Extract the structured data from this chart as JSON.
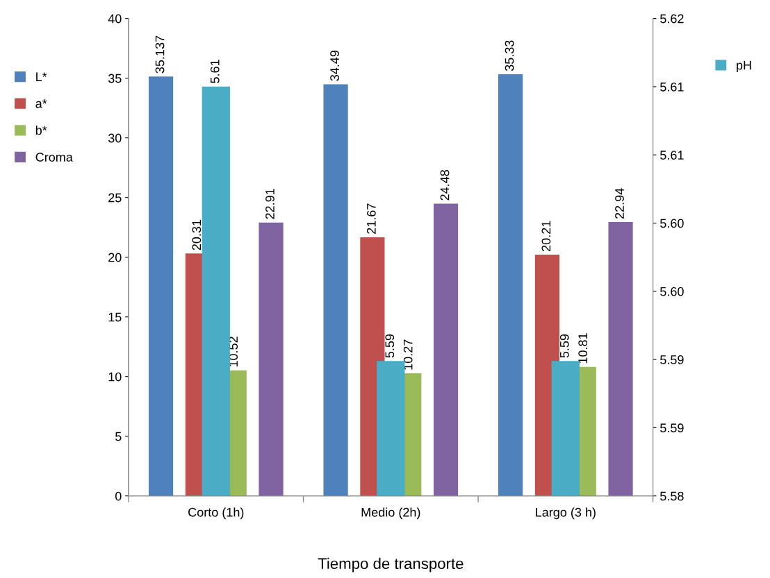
{
  "chart_data": {
    "type": "bar",
    "xlabel": "Tiempo de transporte",
    "categories": [
      "Corto (1h)",
      "Medio (2h)",
      "Largo (3 h)"
    ],
    "series": [
      {
        "name": "L*",
        "color": "#4f81bd",
        "values": [
          35.137,
          34.49,
          35.33
        ]
      },
      {
        "name": "a*",
        "color": "#c0504d",
        "values": [
          20.31,
          21.67,
          20.21
        ]
      },
      {
        "name": "b*",
        "color": "#9bbb59",
        "values": [
          10.52,
          10.27,
          10.81
        ]
      },
      {
        "name": "Croma",
        "color": "#8064a2",
        "values": [
          22.91,
          24.48,
          22.94
        ]
      },
      {
        "name": "pH",
        "color": "#4bacc6",
        "axis": "y2",
        "values": [
          5.6143,
          5.5913,
          5.5913
        ],
        "value_labels": [
          "5.61",
          "5.59",
          "5.59"
        ]
      }
    ],
    "ylim": [
      0,
      40
    ],
    "yticks": [
      0,
      5,
      10,
      15,
      20,
      25,
      30,
      35,
      40
    ],
    "y2lim": [
      5.58,
      5.62
    ],
    "y2ticks": [
      {
        "value": 5.58,
        "label": "5.58"
      },
      {
        "value": 5.585714,
        "label": "5.59"
      },
      {
        "value": 5.591429,
        "label": "5.59"
      },
      {
        "value": 5.597143,
        "label": "5.60"
      },
      {
        "value": 5.602857,
        "label": "5.60"
      },
      {
        "value": 5.608571,
        "label": "5.61"
      },
      {
        "value": 5.614286,
        "label": "5.61"
      },
      {
        "value": 5.62,
        "label": "5.62"
      }
    ],
    "data_labels": true,
    "grid": false,
    "legend": "left"
  }
}
